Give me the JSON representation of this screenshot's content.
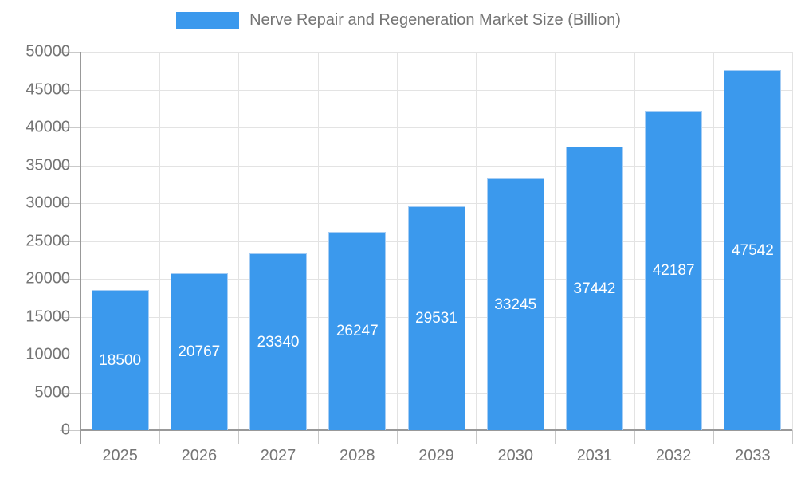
{
  "chart_data": {
    "type": "bar",
    "title": "Nerve Repair and Regeneration Market Size (Billion)",
    "categories": [
      "2025",
      "2026",
      "2027",
      "2028",
      "2029",
      "2030",
      "2031",
      "2032",
      "2033"
    ],
    "values": [
      18500,
      20767,
      23340,
      26247,
      29531,
      33245,
      37442,
      42187,
      47542
    ],
    "series": [
      {
        "name": "Nerve Repair and Regeneration Market Size (Billion)",
        "values": [
          18500,
          20767,
          23340,
          26247,
          29531,
          33245,
          37442,
          42187,
          47542
        ]
      }
    ],
    "xlabel": "",
    "ylabel": "",
    "ylim": [
      0,
      50000
    ],
    "yticks": [
      0,
      5000,
      10000,
      15000,
      20000,
      25000,
      30000,
      35000,
      40000,
      45000,
      50000
    ],
    "grid": true,
    "legend_position": "top",
    "value_labels_inside_bars": true
  },
  "legend": {
    "label": "Nerve Repair and Regeneration Market Size (Billion)"
  },
  "colors": {
    "bar_fill": "#3b99ed",
    "bar_border": "#a6cdf4",
    "gridline": "#e3e3e3",
    "axis_line": "#999999",
    "tick": "#c9c9c9",
    "axis_text": "#757575",
    "bar_value_text": "#ffffff",
    "background": "#ffffff"
  }
}
